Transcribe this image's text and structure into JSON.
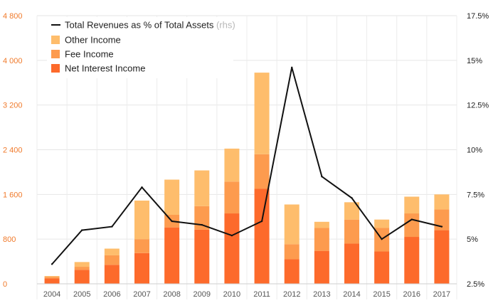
{
  "chart_data": {
    "type": "bar",
    "stacked": true,
    "categories": [
      "2004",
      "2005",
      "2006",
      "2007",
      "2008",
      "2009",
      "2010",
      "2011",
      "2012",
      "2013",
      "2014",
      "2015",
      "2016",
      "2017"
    ],
    "series": [
      {
        "name": "Net Interest Income",
        "color": "#fd6a2b",
        "values": [
          95,
          250,
          340,
          550,
          1010,
          970,
          1260,
          1700,
          440,
          590,
          720,
          580,
          840,
          960
        ]
      },
      {
        "name": "Fee Income",
        "color": "#fd9b4e",
        "values": [
          30,
          55,
          170,
          250,
          225,
          420,
          570,
          620,
          270,
          410,
          430,
          420,
          420,
          370
        ]
      },
      {
        "name": "Other Income",
        "color": "#febd6c",
        "values": [
          15,
          85,
          120,
          690,
          630,
          640,
          590,
          1460,
          710,
          110,
          310,
          150,
          300,
          270
        ]
      }
    ],
    "line_series": {
      "name": "Total Revenues as % of Total Assets",
      "suffix": "(rhs)",
      "color": "#111111",
      "axis": "right",
      "values": [
        3.6,
        5.5,
        5.7,
        7.9,
        6.0,
        5.8,
        5.2,
        6.0,
        14.6,
        8.5,
        7.3,
        5.0,
        6.1,
        5.7
      ]
    },
    "y_left": {
      "ylim": [
        0,
        4800
      ],
      "ticks": [
        0,
        800,
        1600,
        2400,
        3200,
        4000,
        4800
      ],
      "tick_labels": [
        "0",
        "800",
        "1 600",
        "2 400",
        "3 200",
        "4 000",
        "4 800"
      ],
      "color": "#f07a2b"
    },
    "y_right": {
      "ylim": [
        2.5,
        17.5
      ],
      "ticks": [
        2.5,
        5,
        7.5,
        10,
        12.5,
        15,
        17.5
      ],
      "tick_labels": [
        "2.5%",
        "5%",
        "7.5%",
        "10%",
        "12.5%",
        "15%",
        "17.5%"
      ]
    },
    "grid": true,
    "legend_position": "top-left",
    "legend": [
      {
        "label": "Total Revenues as % of Total Assets",
        "suffix": "(rhs)",
        "kind": "line",
        "color": "#111111"
      },
      {
        "label": "Other Income",
        "kind": "box",
        "color": "#febd6c"
      },
      {
        "label": "Fee Income",
        "kind": "box",
        "color": "#fd9b4e"
      },
      {
        "label": "Net Interest Income",
        "kind": "box",
        "color": "#fd6a2b"
      }
    ]
  }
}
